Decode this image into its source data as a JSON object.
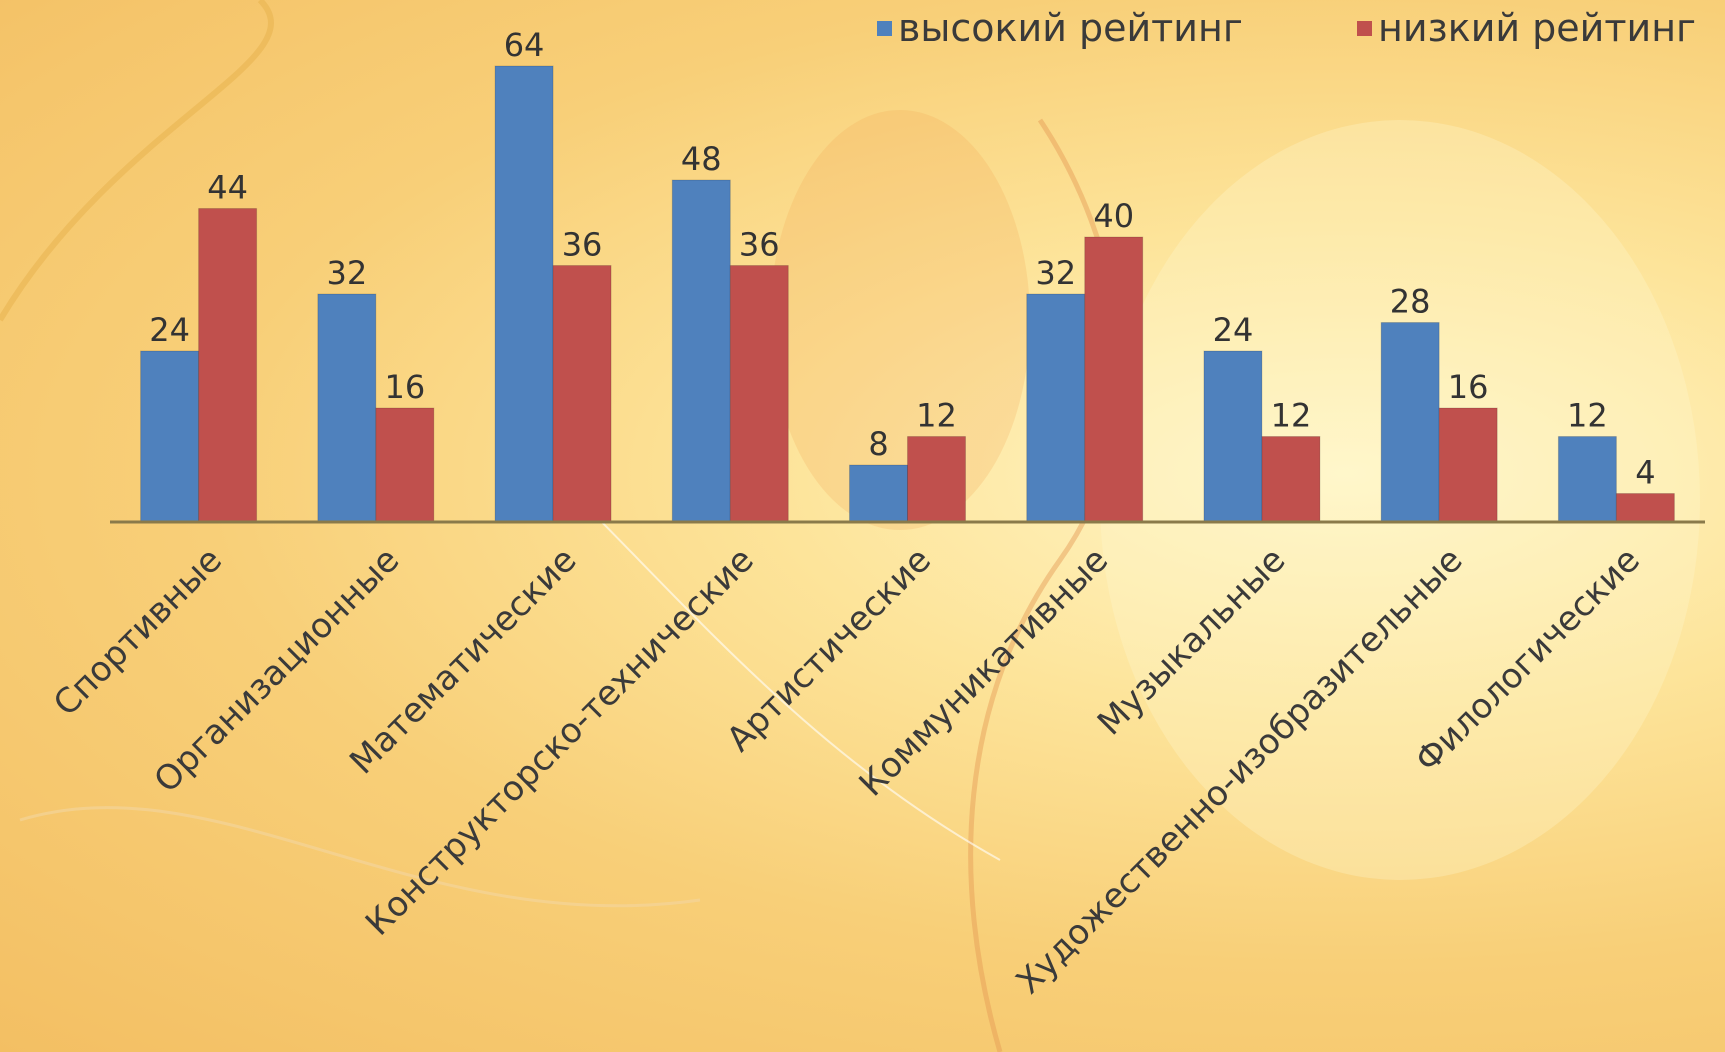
{
  "chart_data": {
    "type": "bar",
    "categories": [
      "Спортивные",
      "Организационные",
      "Математические",
      "Конструкторско-технические",
      "Артистические",
      "Коммуникативные",
      "Музыкальные",
      "Художественно-изобразительные",
      "Филологические"
    ],
    "series": [
      {
        "name": "высокий рейтинг",
        "values": [
          24,
          32,
          64,
          48,
          8,
          32,
          24,
          28,
          12
        ],
        "color": "#4f81bd"
      },
      {
        "name": "низкий рейтинг",
        "values": [
          44,
          16,
          36,
          36,
          12,
          40,
          12,
          16,
          4
        ],
        "color": "#c0504d"
      }
    ],
    "ylim": [
      0,
      70
    ],
    "grid": false,
    "legend": "top-right"
  }
}
